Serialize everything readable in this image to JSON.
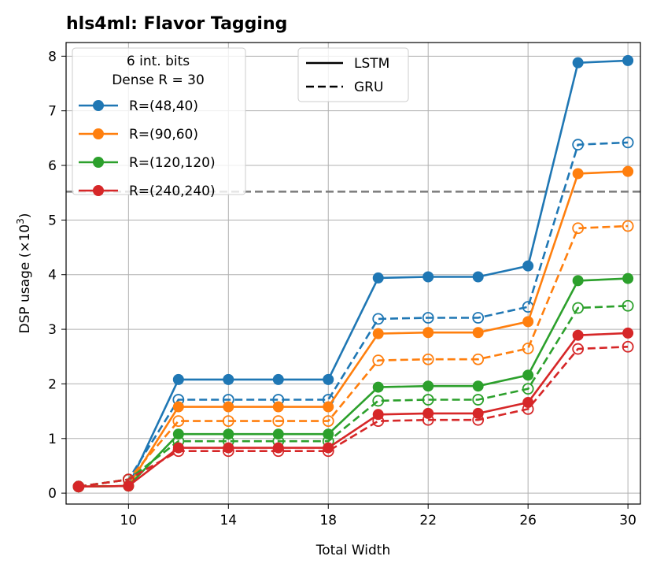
{
  "chart_data": {
    "type": "line",
    "title": "hls4ml: Flavor Tagging",
    "xlabel": "Total Width",
    "ylabel_text": "DSP usage (×10",
    "ylabel_exponent": "3",
    "ylabel_suffix": ")",
    "xlim": [
      7.5,
      30.5
    ],
    "ylim": [
      -0.2,
      8.25
    ],
    "xticks": [
      10,
      14,
      18,
      22,
      26,
      30
    ],
    "yticks": [
      0,
      1,
      2,
      3,
      4,
      5,
      6,
      7,
      8
    ],
    "grid": true,
    "reference_line": {
      "y": 5.52,
      "style": "dashed",
      "color": "#808080"
    },
    "x": [
      8,
      10,
      12,
      14,
      16,
      18,
      20,
      22,
      24,
      26,
      28,
      30
    ],
    "series": [
      {
        "name": "R=(48,40)",
        "model": "LSTM",
        "color": "#1f77b4",
        "values": [
          0.12,
          0.13,
          2.08,
          2.08,
          2.08,
          2.08,
          3.94,
          3.96,
          3.96,
          4.16,
          7.88,
          7.92
        ]
      },
      {
        "name": "R=(48,40)",
        "model": "GRU",
        "color": "#1f77b4",
        "values": [
          0.12,
          0.25,
          1.71,
          1.71,
          1.71,
          1.71,
          3.19,
          3.21,
          3.21,
          3.41,
          6.38,
          6.42
        ]
      },
      {
        "name": "R=(90,60)",
        "model": "LSTM",
        "color": "#ff7f0e",
        "values": [
          0.12,
          0.13,
          1.58,
          1.58,
          1.58,
          1.58,
          2.92,
          2.94,
          2.94,
          3.14,
          5.85,
          5.89
        ]
      },
      {
        "name": "R=(90,60)",
        "model": "GRU",
        "color": "#ff7f0e",
        "values": [
          0.12,
          0.25,
          1.32,
          1.32,
          1.32,
          1.32,
          2.43,
          2.45,
          2.45,
          2.65,
          4.85,
          4.89
        ]
      },
      {
        "name": "R=(120,120)",
        "model": "LSTM",
        "color": "#2ca02c",
        "values": [
          0.12,
          0.13,
          1.08,
          1.08,
          1.08,
          1.08,
          1.94,
          1.96,
          1.96,
          2.16,
          3.89,
          3.93
        ]
      },
      {
        "name": "R=(120,120)",
        "model": "GRU",
        "color": "#2ca02c",
        "values": [
          0.12,
          0.25,
          0.95,
          0.95,
          0.95,
          0.95,
          1.69,
          1.71,
          1.71,
          1.91,
          3.39,
          3.43
        ]
      },
      {
        "name": "R=(240,240)",
        "model": "LSTM",
        "color": "#d62728",
        "values": [
          0.12,
          0.13,
          0.83,
          0.83,
          0.83,
          0.83,
          1.44,
          1.46,
          1.46,
          1.66,
          2.89,
          2.93
        ]
      },
      {
        "name": "R=(240,240)",
        "model": "GRU",
        "color": "#d62728",
        "values": [
          0.12,
          0.25,
          0.77,
          0.77,
          0.77,
          0.77,
          1.32,
          1.34,
          1.34,
          1.54,
          2.64,
          2.68
        ]
      }
    ],
    "legend_left": {
      "placement": "top-left",
      "header_line1": "6 int. bits",
      "header_line2": "Dense R = 30",
      "entries": [
        {
          "label": "R=(48,40)",
          "color": "#1f77b4"
        },
        {
          "label": "R=(90,60)",
          "color": "#ff7f0e"
        },
        {
          "label": "R=(120,120)",
          "color": "#2ca02c"
        },
        {
          "label": "R=(240,240)",
          "color": "#d62728"
        }
      ]
    },
    "legend_right": {
      "placement": "top-center",
      "entries": [
        {
          "label": "LSTM",
          "style": "solid"
        },
        {
          "label": "GRU",
          "style": "dashed"
        }
      ]
    }
  }
}
